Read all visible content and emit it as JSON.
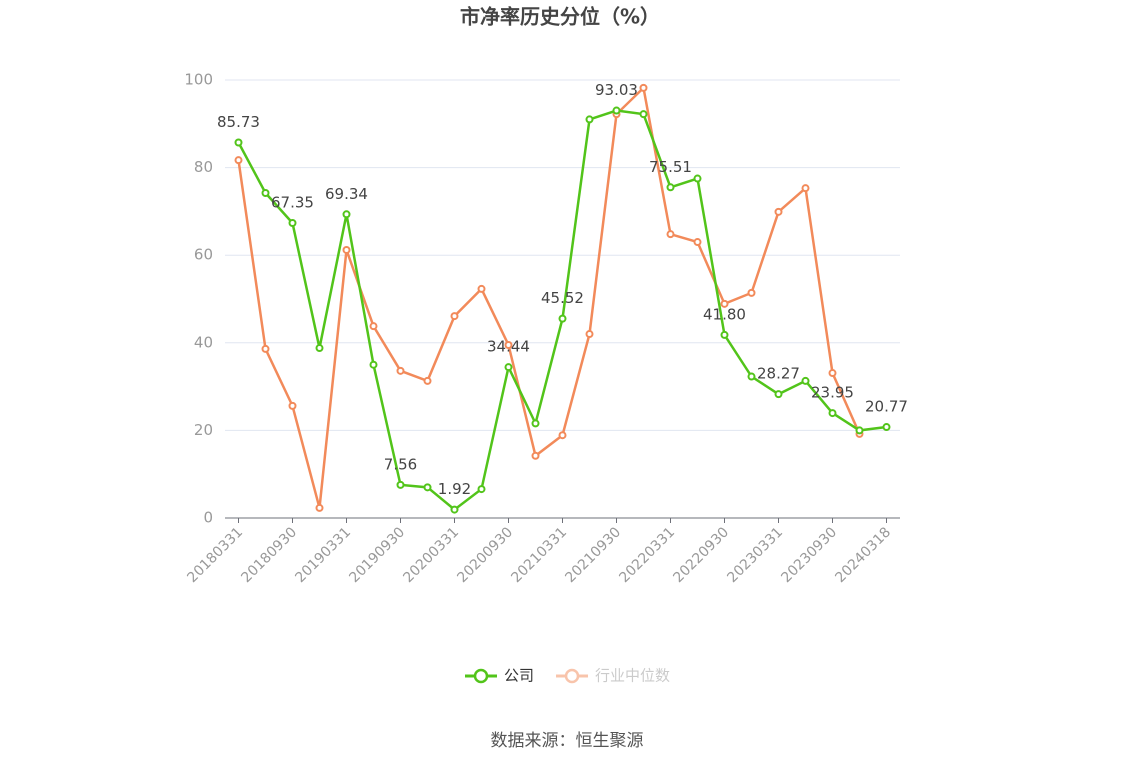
{
  "chart_data": {
    "type": "line",
    "title": "市净率历史分位（%）",
    "categories": [
      "20180331",
      null,
      "20180930",
      null,
      "20190331",
      null,
      "20190930",
      null,
      "20200331",
      null,
      "20200930",
      null,
      "20210331",
      null,
      "20210930",
      null,
      "20220331",
      null,
      "20220930",
      null,
      "20230331",
      null,
      "20230930",
      null,
      "20240318"
    ],
    "series": [
      {
        "name": "公司",
        "color": "#52c41a",
        "values": [
          85.73,
          74.2,
          67.35,
          38.8,
          69.34,
          35.0,
          7.56,
          7.0,
          1.92,
          6.6,
          34.44,
          21.6,
          45.52,
          91.0,
          93.03,
          92.2,
          75.51,
          77.5,
          41.8,
          32.3,
          28.27,
          31.3,
          23.95,
          20.0,
          20.77
        ],
        "value_labels": [
          "85.73",
          null,
          "67.35",
          null,
          "69.34",
          null,
          "7.56",
          null,
          "1.92",
          null,
          "34.44",
          null,
          "45.52",
          null,
          "93.03",
          null,
          "75.51",
          null,
          "41.80",
          null,
          "28.27",
          null,
          "23.95",
          null,
          "20.77"
        ]
      },
      {
        "name": "行业中位数",
        "color": "#f28a5a",
        "values": [
          81.7,
          38.6,
          25.6,
          2.3,
          61.2,
          43.8,
          33.6,
          31.3,
          46.1,
          52.3,
          39.5,
          14.2,
          18.9,
          42.0,
          92.2,
          98.2,
          64.8,
          63.0,
          48.9,
          51.4,
          69.9,
          75.3,
          33.1,
          19.2,
          null
        ]
      }
    ],
    "ylim": [
      0,
      100
    ],
    "yticks": [
      0,
      20,
      40,
      60,
      80,
      100
    ],
    "grid": true,
    "source": "数据来源：恒生聚源"
  }
}
